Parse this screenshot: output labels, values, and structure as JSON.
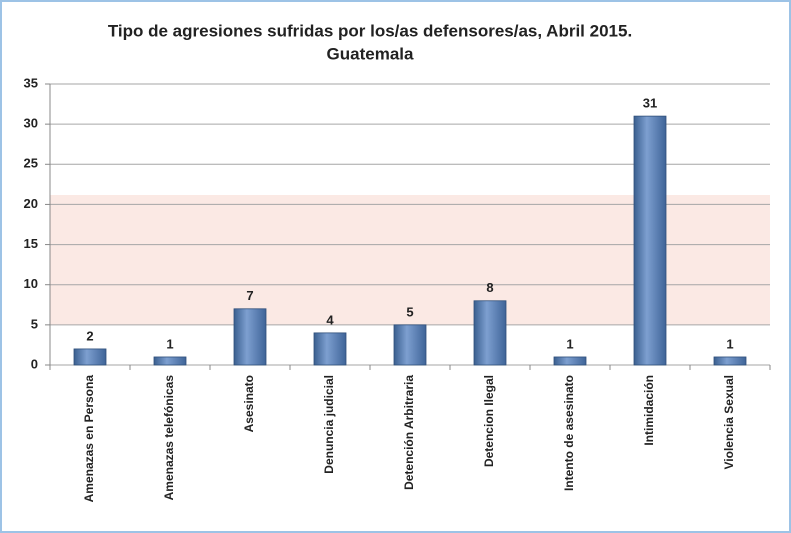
{
  "chart_data": {
    "type": "bar",
    "title": [
      "Tipo de agresiones sufridas por los/as defensores/as, Abril 2015.",
      "Guatemala"
    ],
    "categories": [
      "Amenazas en Persona",
      "Amenazas telefónicas",
      "Asesinato",
      "Denuncia judicial",
      "Detención Arbitraria",
      "Detencion Ilegal",
      "Intento de asesinato",
      "Intimidación",
      "Violencia Sexual"
    ],
    "values": [
      2,
      1,
      7,
      4,
      5,
      8,
      1,
      31,
      1
    ],
    "color": "#4f81bd",
    "ylim": [
      0,
      35
    ],
    "yticks": [
      0,
      5,
      10,
      15,
      20,
      25,
      30,
      35
    ],
    "grid": true
  }
}
